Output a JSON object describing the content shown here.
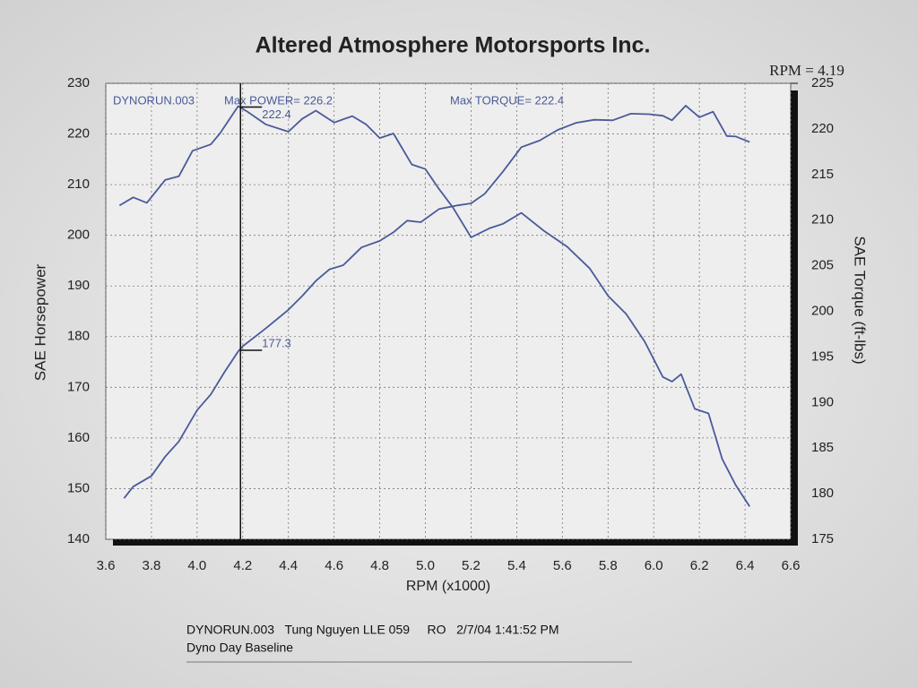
{
  "chart_data": {
    "type": "line",
    "title": "Altered Atmosphere Motorsports Inc.",
    "run_label": "DYNORUN.003",
    "max_power": "Max POWER= 226.2",
    "max_torque": "Max TORQUE= 222.4",
    "xlabel": "RPM (x1000)",
    "ylabel": "SAE Horsepower",
    "y2label": "SAE Torque (ft-lbs)",
    "footer": [
      "DYNORUN.003   Tung Nguyen LLE 059     RO   2/7/04 1:41:52 PM",
      "Dyno Day Baseline"
    ],
    "xlim": [
      3.6,
      6.6
    ],
    "xticks": [
      3.6,
      3.8,
      {
        "value": 4.0,
        "label": "4.0"
      },
      4.2,
      4.4,
      4.6,
      4.8,
      {
        "value": 5.0,
        "label": "5.0"
      },
      5.2,
      5.4,
      5.6,
      5.8,
      {
        "value": 6.0,
        "label": "6.0"
      },
      6.2,
      6.4,
      6.6
    ],
    "ylim": [
      140,
      230
    ],
    "yticks": [
      140,
      150,
      160,
      170,
      180,
      190,
      200,
      210,
      220,
      230
    ],
    "y2lim": [
      175,
      225
    ],
    "y2ticks": [
      175,
      180,
      185,
      190,
      195,
      200,
      205,
      210,
      215,
      220,
      225
    ],
    "grid": true,
    "cursor": {
      "x": 4.19,
      "label": "RPM = 4.19",
      "readouts": [
        {
          "value": 222.4,
          "axis": "y2"
        },
        {
          "value": 177.3,
          "axis": "y"
        }
      ]
    },
    "series": [
      {
        "color": "#4a5a9a",
        "axis": "y",
        "x": [
          3.68,
          3.72,
          3.8,
          3.86,
          3.92,
          4.0,
          4.06,
          4.12,
          4.18,
          4.2,
          4.3,
          4.4,
          4.46,
          4.52,
          4.58,
          4.64,
          4.72,
          4.8,
          4.86,
          4.92,
          4.98,
          5.06,
          5.14,
          5.2,
          5.26,
          5.34,
          5.42,
          5.5,
          5.58,
          5.66,
          5.74,
          5.82,
          5.9,
          5.98,
          6.04,
          6.08,
          6.14,
          6.2,
          6.26,
          6.32,
          6.36,
          6.42
        ],
        "values": [
          148.1,
          150.4,
          152.5,
          156.3,
          159.3,
          165.5,
          168.6,
          173,
          177.1,
          178.1,
          181.6,
          185.3,
          188,
          191,
          193.3,
          194.1,
          197.6,
          198.9,
          200.6,
          202.9,
          202.6,
          205.2,
          205.9,
          206.3,
          208.2,
          212.6,
          217.4,
          218.7,
          220.8,
          222.2,
          222.8,
          222.7,
          224,
          223.9,
          223.6,
          222.7,
          225.6,
          223.3,
          224.4,
          219.6,
          219.5,
          218.4
        ]
      },
      {
        "color": "#4a5a9a",
        "axis": "y2",
        "x": [
          3.66,
          3.72,
          3.78,
          3.86,
          3.92,
          3.98,
          4.06,
          4.1,
          4.18,
          4.22,
          4.3,
          4.4,
          4.46,
          4.52,
          4.6,
          4.68,
          4.74,
          4.8,
          4.86,
          4.94,
          5.0,
          5.06,
          5.12,
          5.2,
          5.28,
          5.34,
          5.42,
          5.52,
          5.62,
          5.72,
          5.8,
          5.88,
          5.96,
          6.04,
          6.08,
          6.12,
          6.18,
          6.24,
          6.3,
          6.36,
          6.42
        ],
        "values": [
          211.6,
          212.5,
          211.9,
          214.4,
          214.8,
          217.6,
          218.3,
          219.5,
          222.5,
          221.9,
          220.5,
          219.7,
          221.1,
          222,
          220.7,
          221.4,
          220.5,
          219,
          219.5,
          216.1,
          215.6,
          213.4,
          211.4,
          208.1,
          209.1,
          209.6,
          210.8,
          208.8,
          207.1,
          204.7,
          201.7,
          199.7,
          196.7,
          192.8,
          192.3,
          193.1,
          189.3,
          188.8,
          183.8,
          180.9,
          178.6
        ]
      }
    ]
  }
}
